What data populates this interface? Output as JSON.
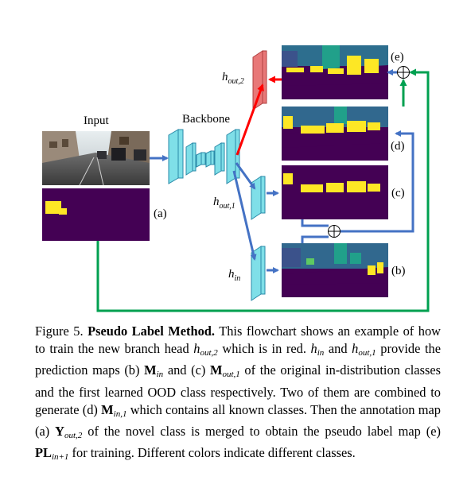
{
  "labels": {
    "input": "Input",
    "backbone": "Backbone",
    "a": "(a)",
    "b": "(b)",
    "c": "(c)",
    "d": "(d)",
    "e": "(e)",
    "h_out2_base": "h",
    "h_out2_sub": "out,2",
    "h_out1_base": "h",
    "h_out1_sub": "out,1",
    "h_in_base": "h",
    "h_in_sub": "in"
  },
  "colors": {
    "flow_blue": "#4472c4",
    "highlight_red": "#ff0000",
    "green_path": "#00a050",
    "head_cyan": "#7fdfe8",
    "head_red": "#e87878",
    "map_purple": "#440154",
    "map_yellow": "#fde725",
    "map_teal": "#21a08a"
  },
  "caption": {
    "label": "Figure 5.",
    "bold_title": "Pseudo Label Method.",
    "seg1": " This flowchart shows an example of how to train the new branch head ",
    "m1_base": "h",
    "m1_sub": "out,2",
    "seg2": " which is in red. ",
    "m2_base": "h",
    "m2_sub": "in",
    "seg3": " and ",
    "m3_base": "h",
    "m3_sub": "out,1",
    "seg4": " provide the prediction maps (b) ",
    "m4_base": "M",
    "m4_sub": "in",
    "seg5": " and (c) ",
    "m5_base": "M",
    "m5_sub": "out,1",
    "seg6": " of the original in-distribution classes and the first learned OOD class respectively. Two of them are combined to generate (d) ",
    "m6_base": "M",
    "m6_sub": "in,1",
    "seg7": " which contains all known classes. Then the annotation map (a) ",
    "m7_base": "Y",
    "m7_sub": "out,2",
    "seg8": " of the novel class is merged to obtain the pseudo label map (e) ",
    "m8_base": "PL",
    "m8_sub": "in+1",
    "seg9": " for training. Different colors indicate different classes."
  }
}
